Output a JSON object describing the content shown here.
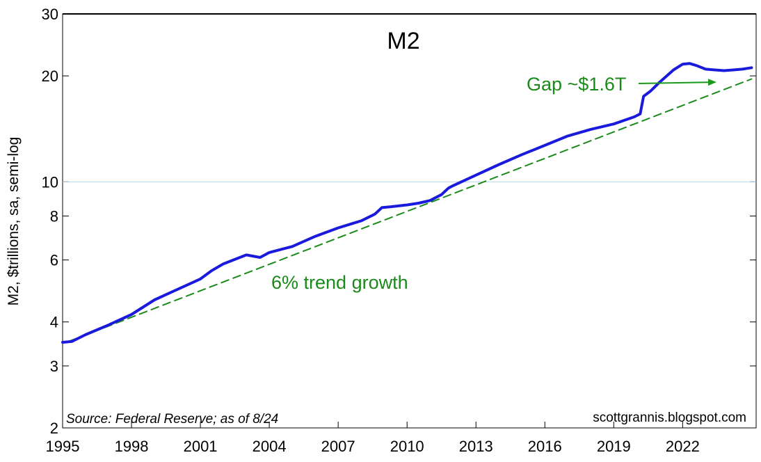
{
  "chart_data": {
    "type": "line",
    "title": "M2",
    "ylabel": "M2, $trillions, sa, semi-log",
    "yscale": "log",
    "ylim": [
      2,
      30
    ],
    "xlim": [
      1995,
      2025.2
    ],
    "y_ticks": [
      2,
      3,
      4,
      6,
      8,
      10,
      20,
      30
    ],
    "y_tick_labels": [
      "2",
      "3",
      "4",
      "6",
      "8",
      "10",
      "20",
      "30"
    ],
    "x_ticks": [
      1995,
      1998,
      2001,
      2004,
      2007,
      2010,
      2013,
      2016,
      2019,
      2022
    ],
    "x_tick_labels": [
      "1995",
      "1998",
      "2001",
      "2004",
      "2007",
      "2010",
      "2013",
      "2016",
      "2019",
      "2022"
    ],
    "reference_line": 10,
    "series": [
      {
        "color": "#1a1adc",
        "x": [
          1995.0,
          1995.4,
          1996.0,
          1997.0,
          1998.0,
          1999.0,
          2000.0,
          2001.0,
          2001.5,
          2002.0,
          2003.0,
          2003.6,
          2004.0,
          2004.6,
          2005.0,
          2006.0,
          2007.0,
          2008.0,
          2008.6,
          2008.9,
          2009.3,
          2010.0,
          2010.5,
          2011.0,
          2011.5,
          2011.8,
          2012.0,
          2013.0,
          2014.0,
          2015.0,
          2016.0,
          2017.0,
          2018.0,
          2019.0,
          2019.9,
          2020.15,
          2020.3,
          2020.6,
          2021.0,
          2021.6,
          2022.0,
          2022.3,
          2022.6,
          2023.0,
          2023.4,
          2023.8,
          2024.2,
          2024.6,
          2025.0
        ],
        "values": [
          3.5,
          3.52,
          3.68,
          3.92,
          4.2,
          4.62,
          4.95,
          5.3,
          5.6,
          5.85,
          6.2,
          6.1,
          6.3,
          6.45,
          6.55,
          7.0,
          7.4,
          7.75,
          8.1,
          8.45,
          8.5,
          8.6,
          8.7,
          8.85,
          9.2,
          9.6,
          9.75,
          10.45,
          11.2,
          11.95,
          12.7,
          13.5,
          14.1,
          14.6,
          15.3,
          15.6,
          17.5,
          18.1,
          19.2,
          20.8,
          21.6,
          21.7,
          21.4,
          20.9,
          20.8,
          20.7,
          20.8,
          20.9,
          21.1
        ]
      },
      {
        "name": "6% trend growth",
        "color": "#1a8a1a",
        "dashed": true,
        "x": [
          1995.3,
          2025.0
        ],
        "values": [
          3.53,
          19.6
        ]
      }
    ],
    "annotations": [
      {
        "text": "6% trend growth",
        "color": "#1a8a1a"
      },
      {
        "text": "Gap ~$1.6T",
        "color": "#1a8a1a"
      }
    ],
    "source": "Source: Federal Reserve; as of 8/24",
    "site": "scottgrannis.blogspot.com",
    "grid": false
  }
}
